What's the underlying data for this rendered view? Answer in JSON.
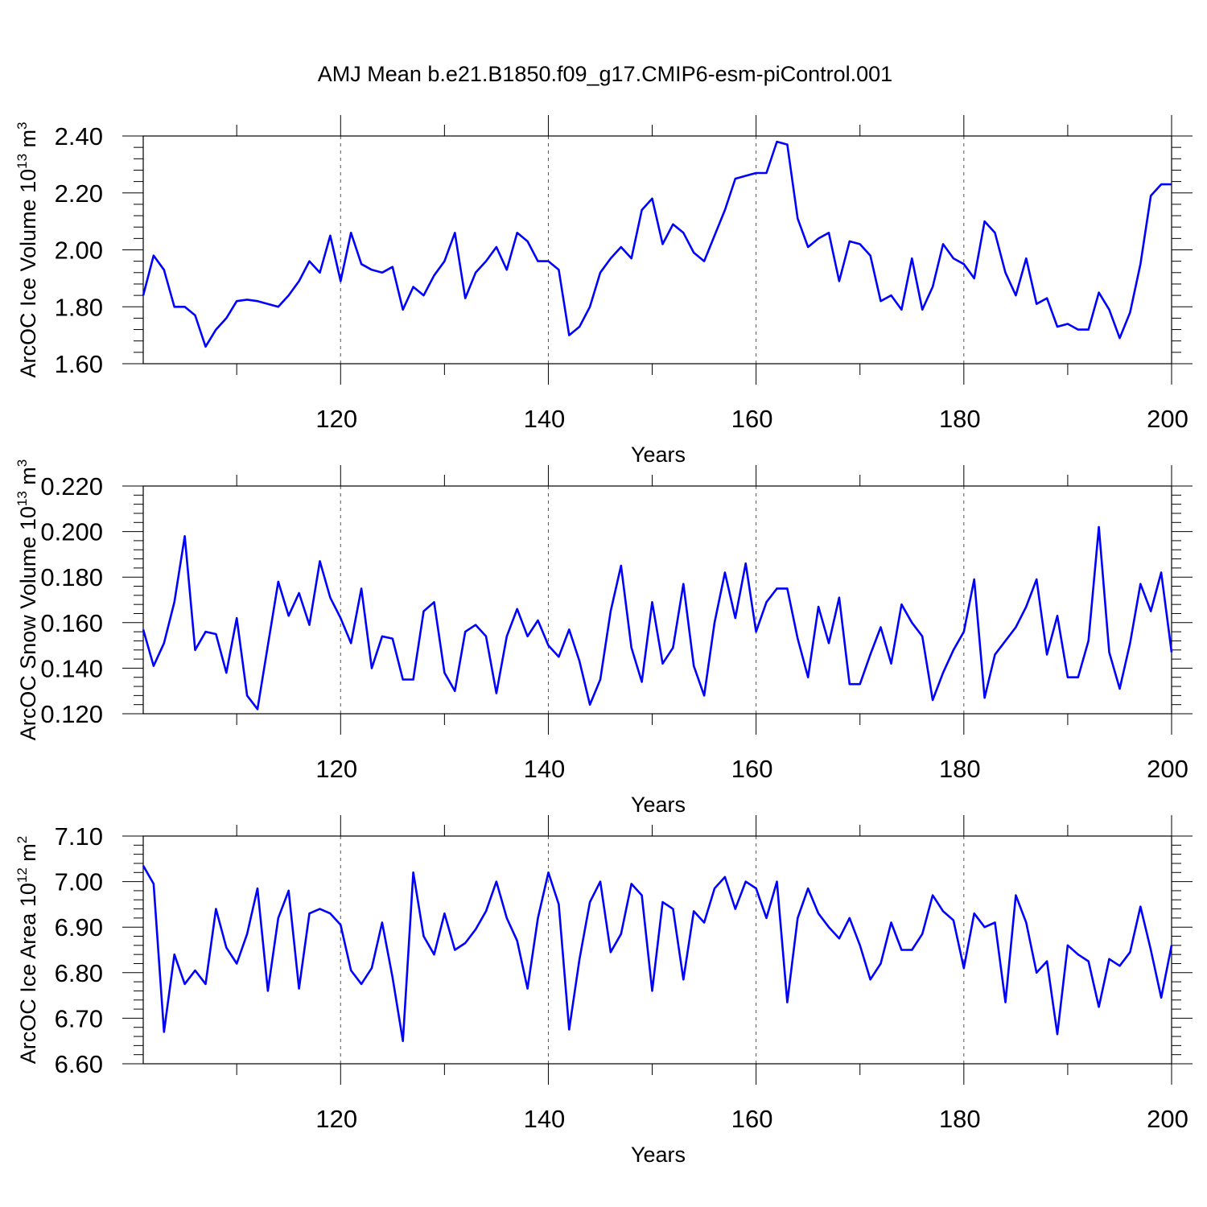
{
  "chart_data": {
    "title": "AMJ Mean b.e21.B1850.f09_g17.CMIP6-esm-piControl.001",
    "panels": [
      {
        "type": "line",
        "ylabel": "ArcOC Ice Volume 10",
        "ylabel_sup": "13",
        "ylabel_unit": " m",
        "ylabel_unit_sup": "3",
        "xlabel": "Years",
        "xlim": [
          101,
          200
        ],
        "ylim": [
          1.6,
          2.4
        ],
        "xticks": [
          120,
          140,
          160,
          180,
          200
        ],
        "yticks": [
          1.6,
          1.8,
          2.0,
          2.2,
          2.4
        ],
        "ytick_labels": [
          "1.60",
          "1.80",
          "2.00",
          "2.20",
          "2.40"
        ],
        "x_start": 101,
        "values": [
          1.84,
          1.98,
          1.93,
          1.8,
          1.8,
          1.77,
          1.66,
          1.72,
          1.76,
          1.82,
          1.825,
          1.82,
          1.81,
          1.8,
          1.84,
          1.89,
          1.96,
          1.92,
          2.05,
          1.89,
          2.06,
          1.95,
          1.93,
          1.92,
          1.94,
          1.79,
          1.87,
          1.84,
          1.91,
          1.96,
          2.06,
          1.83,
          1.92,
          1.96,
          2.01,
          1.93,
          2.06,
          2.03,
          1.96,
          1.96,
          1.93,
          1.7,
          1.73,
          1.8,
          1.92,
          1.97,
          2.01,
          1.97,
          2.14,
          2.18,
          2.02,
          2.09,
          2.06,
          1.99,
          1.96,
          2.05,
          2.14,
          2.25,
          2.26,
          2.27,
          2.27,
          2.38,
          2.37,
          2.11,
          2.01,
          2.04,
          2.06,
          1.89,
          2.03,
          2.02,
          1.98,
          1.82,
          1.84,
          1.79,
          1.97,
          1.79,
          1.87,
          2.02,
          1.97,
          1.95,
          1.9,
          2.1,
          2.06,
          1.92,
          1.84,
          1.97,
          1.81,
          1.83,
          1.73,
          1.74,
          1.72,
          1.72,
          1.85,
          1.79,
          1.69,
          1.78,
          1.95,
          2.19,
          2.23,
          2.23
        ]
      },
      {
        "type": "line",
        "ylabel": "ArcOC Snow Volume 10",
        "ylabel_sup": "13",
        "ylabel_unit": " m",
        "ylabel_unit_sup": "3",
        "xlabel": "Years",
        "xlim": [
          101,
          200
        ],
        "ylim": [
          0.12,
          0.22
        ],
        "xticks": [
          120,
          140,
          160,
          180,
          200
        ],
        "yticks": [
          0.12,
          0.14,
          0.16,
          0.18,
          0.2,
          0.22
        ],
        "ytick_labels": [
          "0.120",
          "0.140",
          "0.160",
          "0.180",
          "0.200",
          "0.220"
        ],
        "x_start": 101,
        "values": [
          0.157,
          0.141,
          0.151,
          0.169,
          0.198,
          0.148,
          0.156,
          0.155,
          0.138,
          0.162,
          0.128,
          0.122,
          0.15,
          0.178,
          0.163,
          0.173,
          0.159,
          0.187,
          0.171,
          0.162,
          0.151,
          0.175,
          0.14,
          0.154,
          0.153,
          0.135,
          0.135,
          0.165,
          0.169,
          0.138,
          0.13,
          0.156,
          0.159,
          0.154,
          0.129,
          0.154,
          0.166,
          0.154,
          0.161,
          0.15,
          0.145,
          0.157,
          0.143,
          0.124,
          0.135,
          0.165,
          0.185,
          0.149,
          0.134,
          0.169,
          0.142,
          0.149,
          0.177,
          0.141,
          0.128,
          0.16,
          0.182,
          0.162,
          0.186,
          0.156,
          0.169,
          0.175,
          0.175,
          0.153,
          0.136,
          0.167,
          0.151,
          0.171,
          0.133,
          0.133,
          0.146,
          0.158,
          0.142,
          0.168,
          0.16,
          0.154,
          0.126,
          0.138,
          0.148,
          0.156,
          0.179,
          0.127,
          0.146,
          0.152,
          0.158,
          0.167,
          0.179,
          0.146,
          0.163,
          0.136,
          0.136,
          0.152,
          0.202,
          0.147,
          0.131,
          0.151,
          0.177,
          0.165,
          0.182,
          0.147
        ]
      },
      {
        "type": "line",
        "ylabel": "ArcOC Ice Area 10",
        "ylabel_sup": "12",
        "ylabel_unit": " m",
        "ylabel_unit_sup": "2",
        "xlabel": "Years",
        "xlim": [
          101,
          200
        ],
        "ylim": [
          6.6,
          7.1
        ],
        "xticks": [
          120,
          140,
          160,
          180,
          200
        ],
        "yticks": [
          6.6,
          6.7,
          6.8,
          6.9,
          7.0,
          7.1
        ],
        "ytick_labels": [
          "6.60",
          "6.70",
          "6.80",
          "6.90",
          "7.00",
          "7.10"
        ],
        "x_start": 101,
        "values": [
          7.035,
          6.995,
          6.67,
          6.84,
          6.775,
          6.805,
          6.775,
          6.94,
          6.855,
          6.82,
          6.885,
          6.985,
          6.76,
          6.92,
          6.98,
          6.765,
          6.93,
          6.94,
          6.93,
          6.905,
          6.805,
          6.775,
          6.81,
          6.91,
          6.79,
          6.65,
          7.02,
          6.88,
          6.84,
          6.93,
          6.85,
          6.865,
          6.895,
          6.935,
          7.0,
          6.92,
          6.87,
          6.765,
          6.92,
          7.02,
          6.95,
          6.675,
          6.83,
          6.955,
          7.0,
          6.845,
          6.885,
          6.995,
          6.97,
          6.76,
          6.955,
          6.94,
          6.785,
          6.935,
          6.91,
          6.985,
          7.01,
          6.94,
          7.0,
          6.985,
          6.92,
          7.0,
          6.735,
          6.92,
          6.985,
          6.93,
          6.9,
          6.875,
          6.92,
          6.86,
          6.785,
          6.82,
          6.91,
          6.85,
          6.85,
          6.885,
          6.97,
          6.935,
          6.915,
          6.81,
          6.93,
          6.9,
          6.91,
          6.735,
          6.97,
          6.91,
          6.8,
          6.825,
          6.665,
          6.86,
          6.84,
          6.825,
          6.725,
          6.83,
          6.815,
          6.845,
          6.945,
          6.85,
          6.745,
          6.86
        ]
      }
    ]
  }
}
